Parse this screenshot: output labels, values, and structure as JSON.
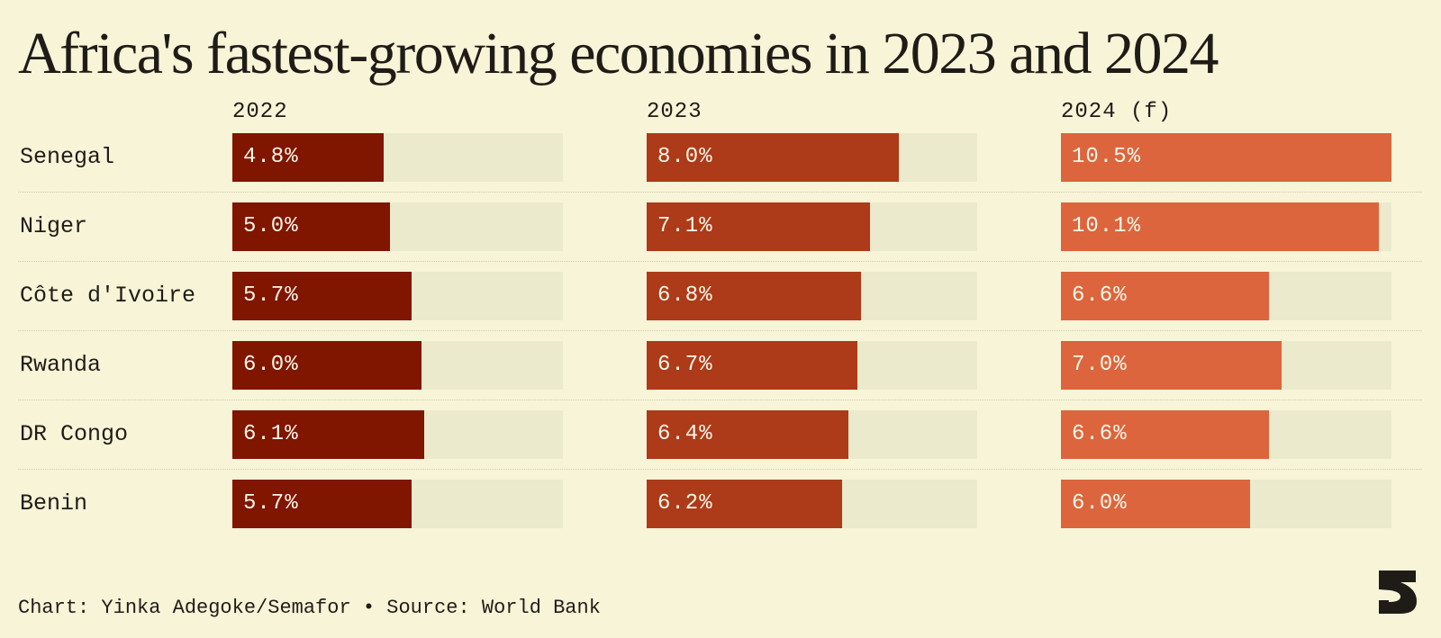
{
  "title": "Africa's fastest-growing economies in 2023 and 2024",
  "footer": "Chart: Yinka Adegoke/Semafor • Source: World Bank",
  "colors": {
    "background": "#f8f4d7",
    "track": "#eceacd",
    "bar_2022": "#801500",
    "bar_2023": "#ad3a18",
    "bar_2024": "#dc653d"
  },
  "chart_data": {
    "type": "bar",
    "title": "Africa's fastest-growing economies in 2023 and 2024",
    "categories": [
      "Senegal",
      "Niger",
      "Côte d'Ivoire",
      "Rwanda",
      "DR Congo",
      "Benin"
    ],
    "series": [
      {
        "name": "2022",
        "values": [
          4.8,
          5.0,
          5.7,
          6.0,
          6.1,
          5.7
        ],
        "labels": [
          "4.8%",
          "5.0%",
          "5.7%",
          "6.0%",
          "6.1%",
          "5.7%"
        ]
      },
      {
        "name": "2023",
        "values": [
          8.0,
          7.1,
          6.8,
          6.7,
          6.4,
          6.2
        ],
        "labels": [
          "8.0%",
          "7.1%",
          "6.8%",
          "6.7%",
          "6.4%",
          "6.2%"
        ]
      },
      {
        "name": "2024 (f)",
        "values": [
          10.5,
          10.1,
          6.6,
          7.0,
          6.6,
          6.0
        ],
        "labels": [
          "10.5%",
          "10.1%",
          "6.6%",
          "7.0%",
          "6.6%",
          "6.0%"
        ]
      }
    ],
    "xlim": [
      0,
      10.5
    ],
    "orientation": "horizontal",
    "layout": "small-multiples",
    "grid": false,
    "legend": "none"
  }
}
